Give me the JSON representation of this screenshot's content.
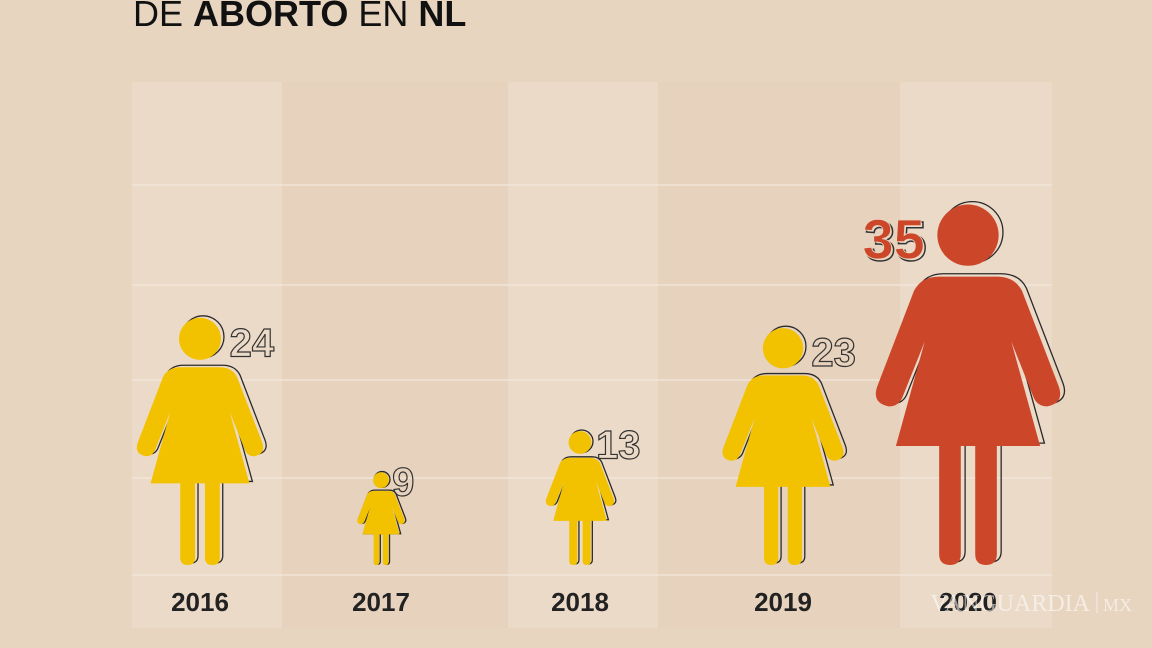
{
  "chart_data": {
    "type": "pictograph",
    "title_segments": [
      {
        "text": "DE",
        "bold": false
      },
      {
        "text": "ABORTO",
        "bold": true
      },
      {
        "text": "EN",
        "bold": false
      },
      {
        "text": "NL",
        "bold": true
      }
    ],
    "categories": [
      "2016",
      "2017",
      "2018",
      "2019",
      "2020"
    ],
    "values": [
      24,
      9,
      13,
      23,
      35
    ],
    "colors": [
      "#f2c200",
      "#f2c200",
      "#f2c200",
      "#f2c200",
      "#cc4629"
    ],
    "watermark": {
      "name": "VANGUARDIA",
      "suffix": "MX"
    }
  }
}
